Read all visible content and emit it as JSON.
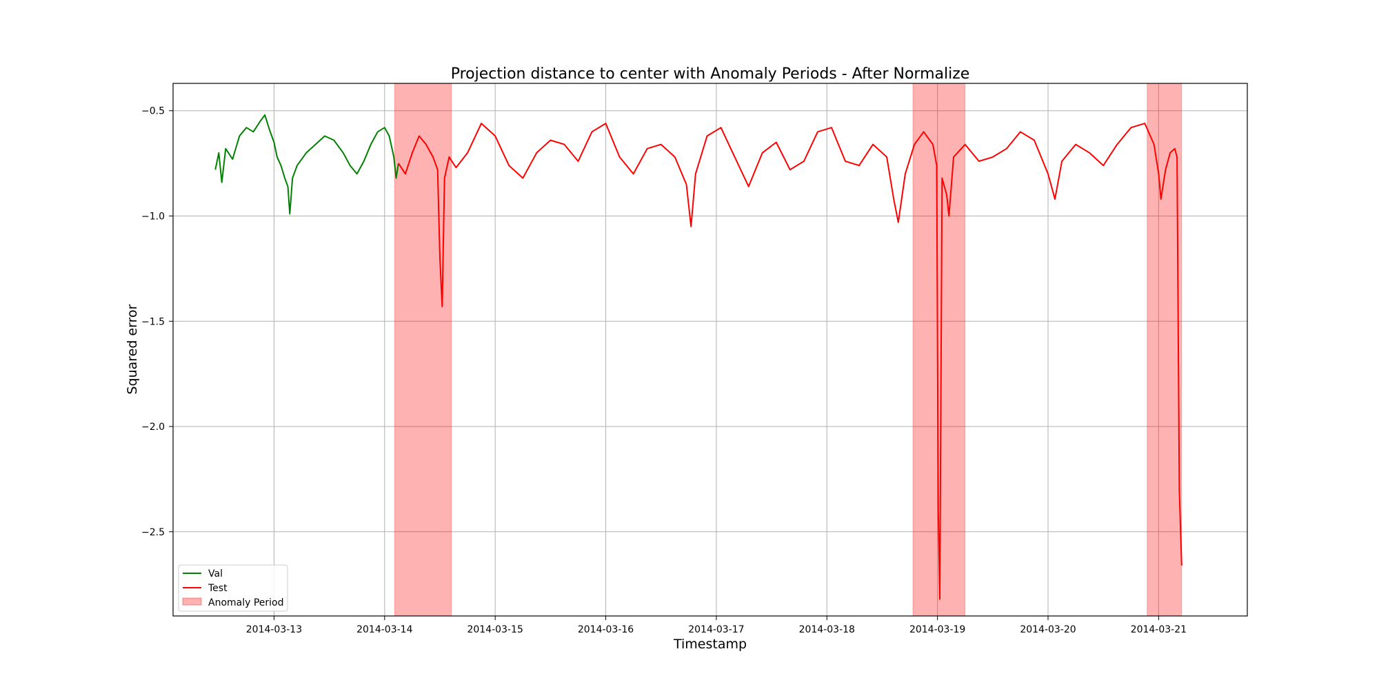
{
  "chart_data": {
    "type": "line",
    "title": "Projection distance to center with Anomaly Periods - After Normalize",
    "xlabel": "Timestamp",
    "ylabel": "Squared error",
    "xlim": [
      "2014-03-12T02:05",
      "2014-03-21T19:15"
    ],
    "ylim": [
      -2.9,
      -0.37
    ],
    "x_ticks": [
      "2014-03-13",
      "2014-03-14",
      "2014-03-15",
      "2014-03-16",
      "2014-03-17",
      "2014-03-18",
      "2014-03-19",
      "2014-03-20",
      "2014-03-21"
    ],
    "y_ticks": [
      -0.5,
      -1.0,
      -1.5,
      -2.0,
      -2.5
    ],
    "y_tick_labels": [
      "−0.5",
      "−1.0",
      "−1.5",
      "−2.0",
      "−2.5"
    ],
    "grid": true,
    "legend_position": "lower-left",
    "legend": [
      "Val",
      "Test",
      "Anomaly Period"
    ],
    "colors": {
      "val": "#008000",
      "test": "#ff0000",
      "anomaly": "#ff0000"
    },
    "anomaly_periods": [
      {
        "start": "2014-03-14T02:10",
        "end": "2014-03-14T14:30"
      },
      {
        "start": "2014-03-18T18:40",
        "end": "2014-03-19T06:00"
      },
      {
        "start": "2014-03-20T21:30",
        "end": "2014-03-21T05:00"
      }
    ],
    "series": [
      {
        "name": "Val",
        "points": [
          [
            "2014-03-12T11:15",
            -0.78
          ],
          [
            "2014-03-12T12:00",
            -0.7
          ],
          [
            "2014-03-12T12:40",
            -0.84
          ],
          [
            "2014-03-12T13:30",
            -0.68
          ],
          [
            "2014-03-12T15:00",
            -0.73
          ],
          [
            "2014-03-12T16:30",
            -0.62
          ],
          [
            "2014-03-12T18:00",
            -0.58
          ],
          [
            "2014-03-12T19:30",
            -0.6
          ],
          [
            "2014-03-12T21:00",
            -0.55
          ],
          [
            "2014-03-12T22:00",
            -0.52
          ],
          [
            "2014-03-12T23:00",
            -0.59
          ],
          [
            "2014-03-13T00:00",
            -0.65
          ],
          [
            "2014-03-13T00:40",
            -0.72
          ],
          [
            "2014-03-13T01:30",
            -0.76
          ],
          [
            "2014-03-13T02:20",
            -0.82
          ],
          [
            "2014-03-13T03:00",
            -0.86
          ],
          [
            "2014-03-13T03:25",
            -0.99
          ],
          [
            "2014-03-13T04:00",
            -0.82
          ],
          [
            "2014-03-13T05:00",
            -0.76
          ],
          [
            "2014-03-13T07:00",
            -0.7
          ],
          [
            "2014-03-13T09:00",
            -0.66
          ],
          [
            "2014-03-13T11:00",
            -0.62
          ],
          [
            "2014-03-13T13:00",
            -0.64
          ],
          [
            "2014-03-13T15:00",
            -0.7
          ],
          [
            "2014-03-13T16:30",
            -0.76
          ],
          [
            "2014-03-13T18:00",
            -0.8
          ],
          [
            "2014-03-13T19:30",
            -0.74
          ],
          [
            "2014-03-13T21:00",
            -0.66
          ],
          [
            "2014-03-13T22:30",
            -0.6
          ],
          [
            "2014-03-14T00:00",
            -0.58
          ],
          [
            "2014-03-14T01:00",
            -0.62
          ],
          [
            "2014-03-14T02:00",
            -0.72
          ],
          [
            "2014-03-14T02:30",
            -0.82
          ],
          [
            "2014-03-14T03:00",
            -0.75
          ]
        ]
      },
      {
        "name": "Test",
        "points": [
          [
            "2014-03-14T03:00",
            -0.75
          ],
          [
            "2014-03-14T04:30",
            -0.8
          ],
          [
            "2014-03-14T06:00",
            -0.7
          ],
          [
            "2014-03-14T07:30",
            -0.62
          ],
          [
            "2014-03-14T09:00",
            -0.66
          ],
          [
            "2014-03-14T10:30",
            -0.72
          ],
          [
            "2014-03-14T11:30",
            -0.78
          ],
          [
            "2014-03-14T12:00",
            -1.2
          ],
          [
            "2014-03-14T12:30",
            -1.43
          ],
          [
            "2014-03-14T13:00",
            -0.82
          ],
          [
            "2014-03-14T14:00",
            -0.72
          ],
          [
            "2014-03-14T15:30",
            -0.77
          ],
          [
            "2014-03-14T18:00",
            -0.7
          ],
          [
            "2014-03-14T21:00",
            -0.56
          ],
          [
            "2014-03-15T00:00",
            -0.62
          ],
          [
            "2014-03-15T03:00",
            -0.76
          ],
          [
            "2014-03-15T06:00",
            -0.82
          ],
          [
            "2014-03-15T09:00",
            -0.7
          ],
          [
            "2014-03-15T12:00",
            -0.64
          ],
          [
            "2014-03-15T15:00",
            -0.66
          ],
          [
            "2014-03-15T18:00",
            -0.74
          ],
          [
            "2014-03-15T21:00",
            -0.6
          ],
          [
            "2014-03-16T00:00",
            -0.56
          ],
          [
            "2014-03-16T03:00",
            -0.72
          ],
          [
            "2014-03-16T06:00",
            -0.8
          ],
          [
            "2014-03-16T09:00",
            -0.68
          ],
          [
            "2014-03-16T12:00",
            -0.66
          ],
          [
            "2014-03-16T15:00",
            -0.72
          ],
          [
            "2014-03-16T17:30",
            -0.85
          ],
          [
            "2014-03-16T18:30",
            -1.05
          ],
          [
            "2014-03-16T19:30",
            -0.8
          ],
          [
            "2014-03-16T22:00",
            -0.62
          ],
          [
            "2014-03-17T01:00",
            -0.58
          ],
          [
            "2014-03-17T04:00",
            -0.72
          ],
          [
            "2014-03-17T07:00",
            -0.86
          ],
          [
            "2014-03-17T10:00",
            -0.7
          ],
          [
            "2014-03-17T13:00",
            -0.65
          ],
          [
            "2014-03-17T16:00",
            -0.78
          ],
          [
            "2014-03-17T19:00",
            -0.74
          ],
          [
            "2014-03-17T22:00",
            -0.6
          ],
          [
            "2014-03-18T01:00",
            -0.58
          ],
          [
            "2014-03-18T04:00",
            -0.74
          ],
          [
            "2014-03-18T07:00",
            -0.76
          ],
          [
            "2014-03-18T10:00",
            -0.66
          ],
          [
            "2014-03-18T13:00",
            -0.72
          ],
          [
            "2014-03-18T14:30",
            -0.92
          ],
          [
            "2014-03-18T15:30",
            -1.03
          ],
          [
            "2014-03-18T17:00",
            -0.8
          ],
          [
            "2014-03-18T19:00",
            -0.66
          ],
          [
            "2014-03-18T21:00",
            -0.6
          ],
          [
            "2014-03-18T23:00",
            -0.66
          ],
          [
            "2014-03-18T23:50",
            -0.76
          ],
          [
            "2014-03-19T00:10",
            -2.4
          ],
          [
            "2014-03-19T00:30",
            -2.82
          ],
          [
            "2014-03-19T01:00",
            -0.82
          ],
          [
            "2014-03-19T02:00",
            -0.9
          ],
          [
            "2014-03-19T02:30",
            -1.0
          ],
          [
            "2014-03-19T03:30",
            -0.72
          ],
          [
            "2014-03-19T06:00",
            -0.66
          ],
          [
            "2014-03-19T09:00",
            -0.74
          ],
          [
            "2014-03-19T12:00",
            -0.72
          ],
          [
            "2014-03-19T15:00",
            -0.68
          ],
          [
            "2014-03-19T18:00",
            -0.6
          ],
          [
            "2014-03-19T21:00",
            -0.64
          ],
          [
            "2014-03-20T00:00",
            -0.8
          ],
          [
            "2014-03-20T01:30",
            -0.92
          ],
          [
            "2014-03-20T03:00",
            -0.74
          ],
          [
            "2014-03-20T06:00",
            -0.66
          ],
          [
            "2014-03-20T09:00",
            -0.7
          ],
          [
            "2014-03-20T12:00",
            -0.76
          ],
          [
            "2014-03-20T15:00",
            -0.66
          ],
          [
            "2014-03-20T18:00",
            -0.58
          ],
          [
            "2014-03-20T21:00",
            -0.56
          ],
          [
            "2014-03-20T23:00",
            -0.66
          ],
          [
            "2014-03-21T00:00",
            -0.8
          ],
          [
            "2014-03-21T00:30",
            -0.92
          ],
          [
            "2014-03-21T01:30",
            -0.78
          ],
          [
            "2014-03-21T02:30",
            -0.7
          ],
          [
            "2014-03-21T03:30",
            -0.68
          ],
          [
            "2014-03-21T04:00",
            -0.72
          ],
          [
            "2014-03-21T04:30",
            -2.3
          ],
          [
            "2014-03-21T05:00",
            -2.66
          ]
        ]
      }
    ]
  }
}
